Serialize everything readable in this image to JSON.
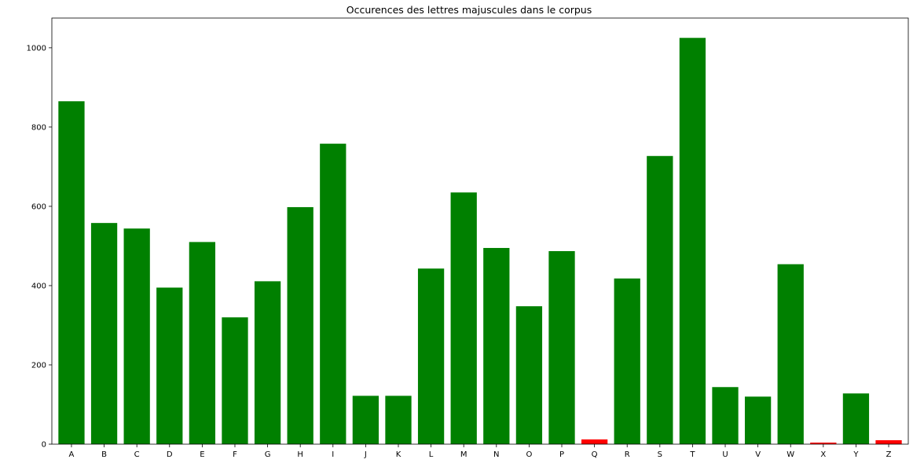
{
  "chart_data": {
    "type": "bar",
    "title": "Occurences des lettres majuscules dans le corpus",
    "xlabel": "",
    "ylabel": "",
    "categories": [
      "A",
      "B",
      "C",
      "D",
      "E",
      "F",
      "G",
      "H",
      "I",
      "J",
      "K",
      "L",
      "M",
      "N",
      "O",
      "P",
      "Q",
      "R",
      "S",
      "T",
      "U",
      "V",
      "W",
      "X",
      "Y",
      "Z"
    ],
    "values": [
      865,
      558,
      544,
      395,
      510,
      320,
      411,
      598,
      758,
      122,
      122,
      443,
      635,
      495,
      348,
      487,
      12,
      418,
      727,
      1025,
      144,
      120,
      454,
      4,
      128,
      10
    ],
    "bar_colors": [
      "#008000",
      "#008000",
      "#008000",
      "#008000",
      "#008000",
      "#008000",
      "#008000",
      "#008000",
      "#008000",
      "#008000",
      "#008000",
      "#008000",
      "#008000",
      "#008000",
      "#008000",
      "#008000",
      "#ff0000",
      "#008000",
      "#008000",
      "#008000",
      "#008000",
      "#008000",
      "#008000",
      "#ff0000",
      "#008000",
      "#ff0000"
    ],
    "ylim": [
      0,
      1075
    ],
    "yticks": [
      0,
      200,
      400,
      600,
      800,
      1000
    ],
    "grid": false,
    "legend": "none"
  }
}
